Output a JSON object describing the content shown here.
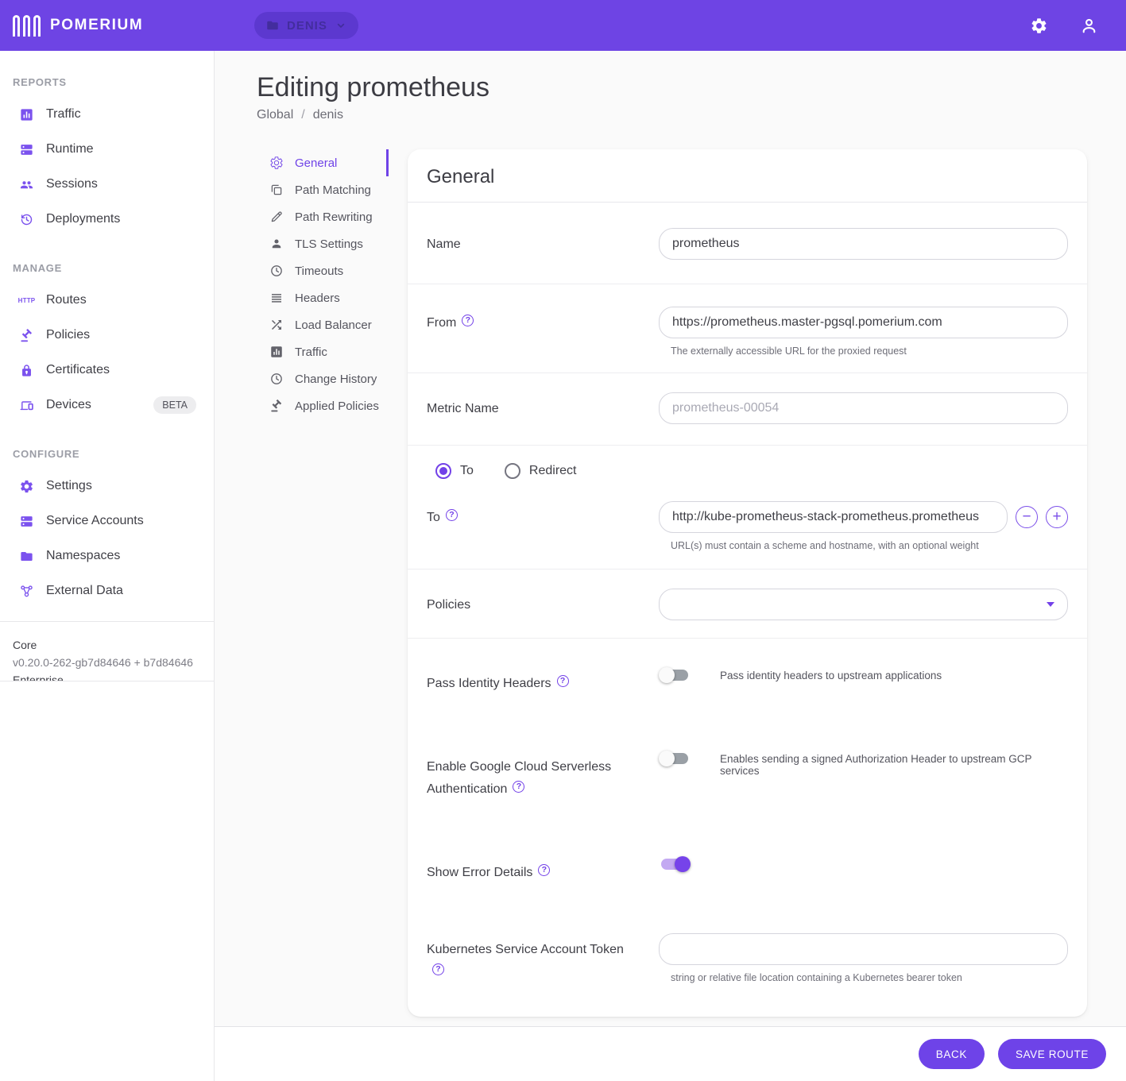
{
  "colors": {
    "brand_purple": "#6E44E4",
    "accent_purple": "#7341E8",
    "chip_purple": "#5C38CF"
  },
  "app_bar": {
    "brand": "POMERIUM",
    "namespace": "DENIS"
  },
  "sidebar": {
    "sections": [
      {
        "label": "REPORTS",
        "items": [
          {
            "icon": "bar-chart-icon",
            "label": "Traffic"
          },
          {
            "icon": "dns-icon",
            "label": "Runtime"
          },
          {
            "icon": "people-icon",
            "label": "Sessions"
          },
          {
            "icon": "history-icon",
            "label": "Deployments"
          }
        ]
      },
      {
        "label": "MANAGE",
        "items": [
          {
            "icon": "http-icon",
            "label": "Routes"
          },
          {
            "icon": "gavel-icon",
            "label": "Policies"
          },
          {
            "icon": "lock-icon",
            "label": "Certificates"
          },
          {
            "icon": "devices-icon",
            "label": "Devices",
            "badge": "BETA"
          }
        ]
      },
      {
        "label": "CONFIGURE",
        "items": [
          {
            "icon": "gear-icon",
            "label": "Settings"
          },
          {
            "icon": "dns-icon",
            "label": "Service Accounts"
          },
          {
            "icon": "folder-icon",
            "label": "Namespaces"
          },
          {
            "icon": "hub-icon",
            "label": "External Data"
          }
        ]
      }
    ],
    "footer": {
      "product": "Core",
      "version": "v0.20.0-262-gb7d84646 + b7d84646",
      "edition": "Enterprise"
    }
  },
  "page": {
    "title": "Editing prometheus",
    "breadcrumb": {
      "parent": "Global",
      "separator": "/",
      "current": "denis"
    }
  },
  "route_nav": {
    "items": [
      {
        "icon": "gear-outline-icon",
        "label": "General",
        "selected": true
      },
      {
        "icon": "copy-icon",
        "label": "Path Matching"
      },
      {
        "icon": "pencil-icon",
        "label": "Path Rewriting"
      },
      {
        "icon": "person-icon",
        "label": "TLS Settings"
      },
      {
        "icon": "clock-icon",
        "label": "Timeouts"
      },
      {
        "icon": "headline-icon",
        "label": "Headers"
      },
      {
        "icon": "shuffle-icon",
        "label": "Load Balancer"
      },
      {
        "icon": "bar-chart-icon",
        "label": "Traffic"
      },
      {
        "icon": "clock-icon",
        "label": "Change History"
      },
      {
        "icon": "gavel-icon",
        "label": "Applied Policies"
      }
    ]
  },
  "form": {
    "card_title": "General",
    "name": {
      "label": "Name",
      "value": "prometheus"
    },
    "from": {
      "label": "From",
      "value": "https://prometheus.master-pgsql.pomerium.com",
      "helper": "The externally accessible URL for the proxied request"
    },
    "metric_name": {
      "label": "Metric Name",
      "placeholder": "prometheus-00054"
    },
    "mode": {
      "to_label": "To",
      "redirect_label": "Redirect",
      "selected": "To"
    },
    "to": {
      "label": "To",
      "value": "http://kube-prometheus-stack-prometheus.prometheus",
      "helper": "URL(s) must contain a scheme and hostname, with an optional weight"
    },
    "policies": {
      "label": "Policies",
      "value": ""
    },
    "pass_identity_headers": {
      "label": "Pass Identity Headers",
      "enabled": false,
      "helper": "Pass identity headers to upstream applications"
    },
    "gcp_serverless": {
      "label": "Enable Google Cloud Serverless Authentication",
      "enabled": false,
      "helper": "Enables sending a signed Authorization Header to upstream GCP services"
    },
    "show_error_details": {
      "label": "Show Error Details",
      "enabled": true
    },
    "k8s_token": {
      "label": "Kubernetes Service Account Token",
      "value": "",
      "helper": "string or relative file location containing a Kubernetes bearer token"
    }
  },
  "action_bar": {
    "back_label": "BACK",
    "save_label": "SAVE ROUTE"
  }
}
